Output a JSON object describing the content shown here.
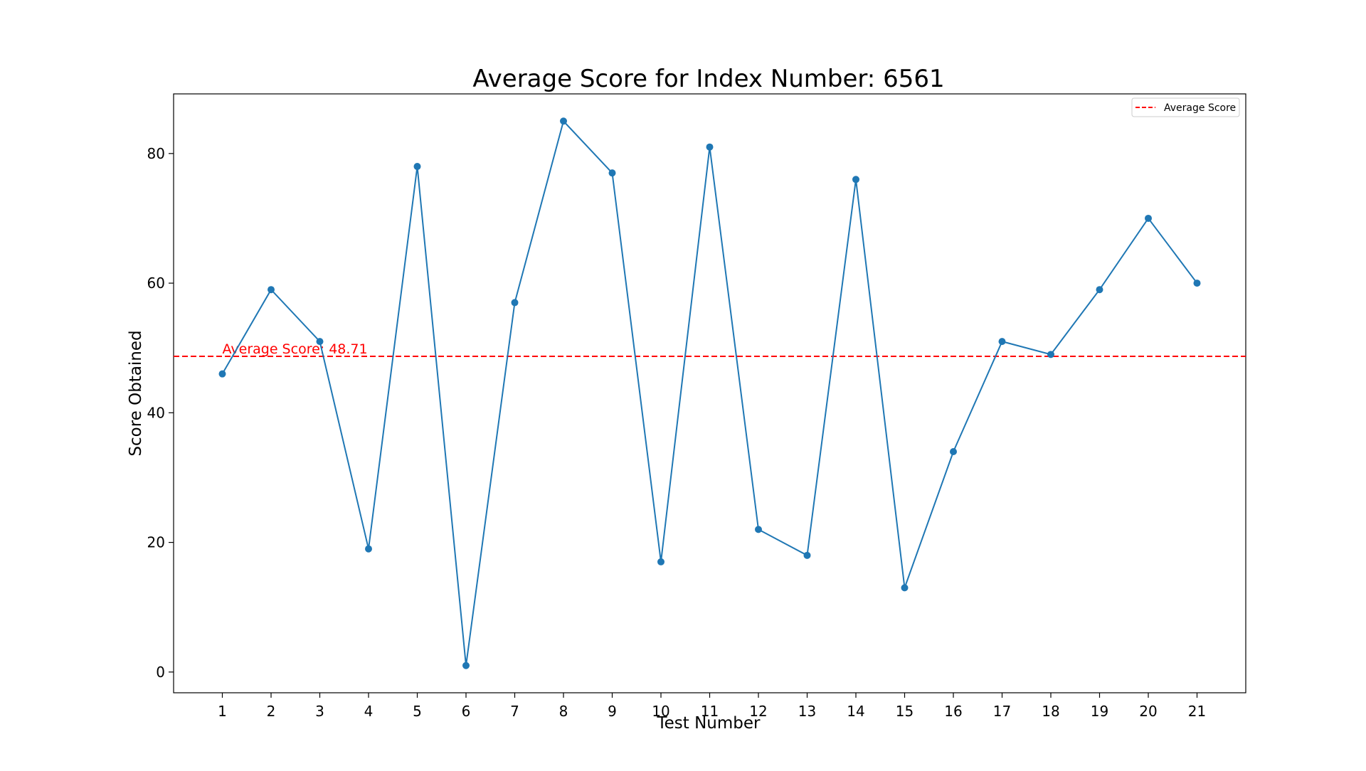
{
  "chart_data": {
    "type": "line",
    "title": "Average Score for Index Number: 6561",
    "xlabel": "Test Number",
    "ylabel": "Score Obtained",
    "x": [
      1,
      2,
      3,
      4,
      5,
      6,
      7,
      8,
      9,
      10,
      11,
      12,
      13,
      14,
      15,
      16,
      17,
      18,
      19,
      20,
      21
    ],
    "series": [
      {
        "values": [
          46,
          59,
          51,
          19,
          78,
          1,
          57,
          85,
          77,
          17,
          81,
          22,
          18,
          76,
          13,
          34,
          51,
          49,
          59,
          70,
          60
        ],
        "color": "#1f77b4",
        "marker": "circle"
      }
    ],
    "reference_line": {
      "name": "Average Score",
      "value": 48.71,
      "style": "dashed",
      "color": "#ff0000",
      "annotation": "Average Score: 48.71"
    },
    "xlim": [
      0,
      22
    ],
    "ylim": [
      -3.2,
      89.2
    ],
    "yticks": [
      0,
      20,
      40,
      60,
      80
    ],
    "xticks": [
      1,
      2,
      3,
      4,
      5,
      6,
      7,
      8,
      9,
      10,
      11,
      12,
      13,
      14,
      15,
      16,
      17,
      18,
      19,
      20,
      21
    ],
    "grid": false,
    "legend": {
      "position": "top-right",
      "entries": [
        "Average Score"
      ]
    }
  }
}
